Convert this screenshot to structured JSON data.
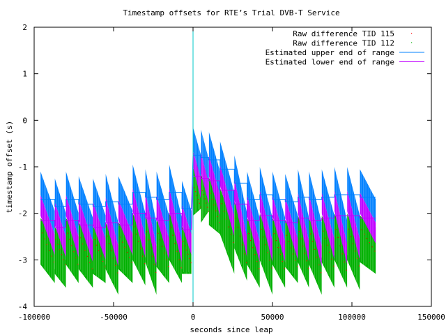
{
  "chart_data": {
    "type": "scatter",
    "title": "Timestamp offsets for RTE’s Trial DVB-T Service",
    "xlabel": "seconds since leap",
    "ylabel": "timestamp offset (s)",
    "xlim": [
      -100000,
      150000
    ],
    "ylim": [
      -4,
      2
    ],
    "x_ticks": [
      -100000,
      -50000,
      0,
      50000,
      100000,
      150000
    ],
    "y_ticks": [
      -4,
      -3,
      -2,
      -1,
      0,
      1,
      2
    ],
    "x_tick_labels": [
      "-100000",
      "-50000",
      "0",
      "50000",
      "100000",
      "150000"
    ],
    "y_tick_labels": [
      "-4",
      "-3",
      "-2",
      "-1",
      "0",
      "1",
      "2"
    ],
    "legend_position": "top-right",
    "grid": false,
    "reference_line": {
      "x": 0,
      "color": "#00c8c8"
    },
    "series": [
      {
        "name": "Raw difference TID 115",
        "style": "dots",
        "color": "#ff0000"
      },
      {
        "name": "Raw difference TID 112",
        "style": "dots",
        "color": "#00b000"
      },
      {
        "name": "Estimated upper end of range",
        "style": "line",
        "color": "#0080ff"
      },
      {
        "name": "Estimated lower end of range",
        "style": "line",
        "color": "#c000ff"
      }
    ],
    "sawtooth_segments": [
      {
        "x0": -96000,
        "x1": -87000,
        "upper": [
          -1.1,
          -1.95
        ],
        "lower": [
          -1.6,
          -2.45
        ],
        "raw": [
          -2.1,
          -3.5
        ]
      },
      {
        "x0": -87000,
        "x1": -80000,
        "upper": [
          -1.25,
          -2.0
        ],
        "lower": [
          -1.75,
          -2.5
        ],
        "raw": [
          -2.3,
          -3.6
        ]
      },
      {
        "x0": -80000,
        "x1": -72000,
        "upper": [
          -1.1,
          -2.0
        ],
        "lower": [
          -1.6,
          -2.5
        ],
        "raw": [
          -2.1,
          -3.5
        ]
      },
      {
        "x0": -72000,
        "x1": -63000,
        "upper": [
          -1.2,
          -2.1
        ],
        "lower": [
          -1.7,
          -2.6
        ],
        "raw": [
          -2.2,
          -3.6
        ]
      },
      {
        "x0": -63000,
        "x1": -55000,
        "upper": [
          -1.25,
          -2.05
        ],
        "lower": [
          -1.75,
          -2.55
        ],
        "raw": [
          -2.3,
          -3.5
        ]
      },
      {
        "x0": -55000,
        "x1": -47000,
        "upper": [
          -1.15,
          -2.2
        ],
        "lower": [
          -1.65,
          -2.7
        ],
        "raw": [
          -2.2,
          -3.75
        ]
      },
      {
        "x0": -47000,
        "x1": -38000,
        "upper": [
          -1.2,
          -1.95
        ],
        "lower": [
          -1.7,
          -2.45
        ],
        "raw": [
          -2.2,
          -3.5
        ]
      },
      {
        "x0": -38000,
        "x1": -30000,
        "upper": [
          -0.95,
          -2.0
        ],
        "lower": [
          -1.45,
          -2.5
        ],
        "raw": [
          -2.0,
          -3.55
        ]
      },
      {
        "x0": -30000,
        "x1": -23000,
        "upper": [
          -1.05,
          -2.2
        ],
        "lower": [
          -1.55,
          -2.7
        ],
        "raw": [
          -2.05,
          -3.75
        ]
      },
      {
        "x0": -23000,
        "x1": -15000,
        "upper": [
          -1.1,
          -2.05
        ],
        "lower": [
          -1.6,
          -2.55
        ],
        "raw": [
          -2.15,
          -3.5
        ]
      },
      {
        "x0": -15000,
        "x1": -7000,
        "upper": [
          -0.95,
          -2.1
        ],
        "lower": [
          -1.45,
          -2.6
        ],
        "raw": [
          -2.0,
          -3.5
        ]
      },
      {
        "x0": -7000,
        "x1": -1000,
        "upper": [
          -1.3,
          -1.95
        ],
        "lower": [
          -1.8,
          -2.45
        ],
        "raw": [
          -2.3,
          -3.3
        ]
      },
      {
        "x0": 0,
        "x1": 5000,
        "upper": [
          -0.15,
          -0.75
        ],
        "lower": [
          -0.65,
          -1.25
        ],
        "raw": [
          -1.05,
          -1.9
        ]
      },
      {
        "x0": 5000,
        "x1": 10000,
        "upper": [
          -0.2,
          -0.85
        ],
        "lower": [
          -0.7,
          -1.35
        ],
        "raw": [
          -1.2,
          -1.95
        ]
      },
      {
        "x0": 10000,
        "x1": 17000,
        "upper": [
          -0.25,
          -1.1
        ],
        "lower": [
          -0.75,
          -1.6
        ],
        "raw": [
          -1.25,
          -2.45
        ]
      },
      {
        "x0": 17000,
        "x1": 26000,
        "upper": [
          -0.45,
          -1.55
        ],
        "lower": [
          -0.95,
          -2.05
        ],
        "raw": [
          -1.45,
          -3.3
        ]
      },
      {
        "x0": 26000,
        "x1": 34000,
        "upper": [
          -0.75,
          -2.0
        ],
        "lower": [
          -1.25,
          -2.5
        ],
        "raw": [
          -1.75,
          -3.45
        ]
      },
      {
        "x0": 34000,
        "x1": 42000,
        "upper": [
          -1.1,
          -2.1
        ],
        "lower": [
          -1.6,
          -2.6
        ],
        "raw": [
          -2.1,
          -3.6
        ]
      },
      {
        "x0": 42000,
        "x1": 50000,
        "upper": [
          -1.0,
          -2.1
        ],
        "lower": [
          -1.5,
          -2.6
        ],
        "raw": [
          -2.0,
          -3.75
        ]
      },
      {
        "x0": 50000,
        "x1": 58000,
        "upper": [
          -1.1,
          -2.1
        ],
        "lower": [
          -1.6,
          -2.6
        ],
        "raw": [
          -2.1,
          -3.6
        ]
      },
      {
        "x0": 58000,
        "x1": 66000,
        "upper": [
          -1.15,
          -2.05
        ],
        "lower": [
          -1.65,
          -2.55
        ],
        "raw": [
          -2.15,
          -3.5
        ]
      },
      {
        "x0": 66000,
        "x1": 73000,
        "upper": [
          -1.05,
          -2.1
        ],
        "lower": [
          -1.55,
          -2.6
        ],
        "raw": [
          -2.05,
          -3.6
        ]
      },
      {
        "x0": 73000,
        "x1": 81000,
        "upper": [
          -1.1,
          -2.2
        ],
        "lower": [
          -1.6,
          -2.7
        ],
        "raw": [
          -2.1,
          -3.75
        ]
      },
      {
        "x0": 81000,
        "x1": 89000,
        "upper": [
          -1.05,
          -2.05
        ],
        "lower": [
          -1.55,
          -2.55
        ],
        "raw": [
          -2.05,
          -3.6
        ]
      },
      {
        "x0": 89000,
        "x1": 97000,
        "upper": [
          -1.0,
          -2.15
        ],
        "lower": [
          -1.5,
          -2.65
        ],
        "raw": [
          -2.0,
          -3.6
        ]
      },
      {
        "x0": 97000,
        "x1": 105000,
        "upper": [
          -1.0,
          -2.05
        ],
        "lower": [
          -1.5,
          -2.55
        ],
        "raw": [
          -2.0,
          -3.65
        ]
      },
      {
        "x0": 105000,
        "x1": 115000,
        "upper": [
          -1.05,
          -1.7
        ],
        "lower": [
          -1.55,
          -2.2
        ],
        "raw": [
          -2.05,
          -3.3
        ]
      }
    ]
  }
}
